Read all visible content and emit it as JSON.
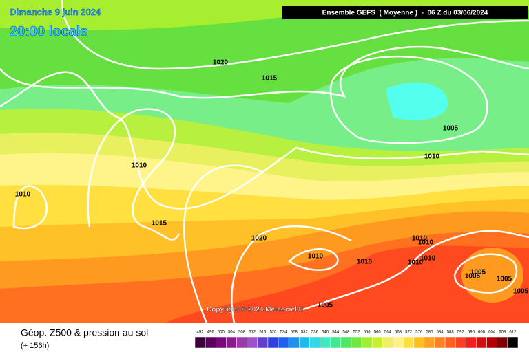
{
  "header": {
    "date": "Dimanche 9 juin 2024",
    "time": "20:00 locale",
    "run": "Ensemble GEFS  ( Moyenne )  -  06 Z du 03/06/2024"
  },
  "map": {
    "isobar_labels": [
      1020,
      1015,
      1010,
      1010,
      1015,
      1020,
      1010,
      1010,
      1005,
      1010,
      1010,
      1010,
      1010,
      1010,
      1005,
      1005,
      1005,
      1005,
      1005
    ],
    "copyright": "Copyright © 2024 Meteociel.fr"
  },
  "footer": {
    "title": "Géop. Z500 & pression au sol",
    "lead": "(+ 156h)"
  },
  "legend": {
    "values": [
      492,
      496,
      500,
      504,
      508,
      512,
      516,
      520,
      524,
      528,
      532,
      536,
      540,
      544,
      548,
      552,
      556,
      560,
      564,
      568,
      572,
      576,
      580,
      584,
      588,
      592,
      596,
      600,
      604,
      608,
      612
    ],
    "colors": [
      "#3a003a",
      "#5a005a",
      "#7a0a7a",
      "#8a1a8a",
      "#9a3aaa",
      "#a050c8",
      "#6040d0",
      "#3040e0",
      "#2060f0",
      "#2090f0",
      "#20b8f0",
      "#30d8e8",
      "#40e8c0",
      "#40e890",
      "#50e860",
      "#70e840",
      "#a0f030",
      "#c8f030",
      "#f0f060",
      "#fff088",
      "#ffe040",
      "#ffc020",
      "#ffa020",
      "#ff8020",
      "#ff6020",
      "#ff4020",
      "#f02020",
      "#d01010",
      "#b00000",
      "#800000",
      "#000000"
    ]
  }
}
